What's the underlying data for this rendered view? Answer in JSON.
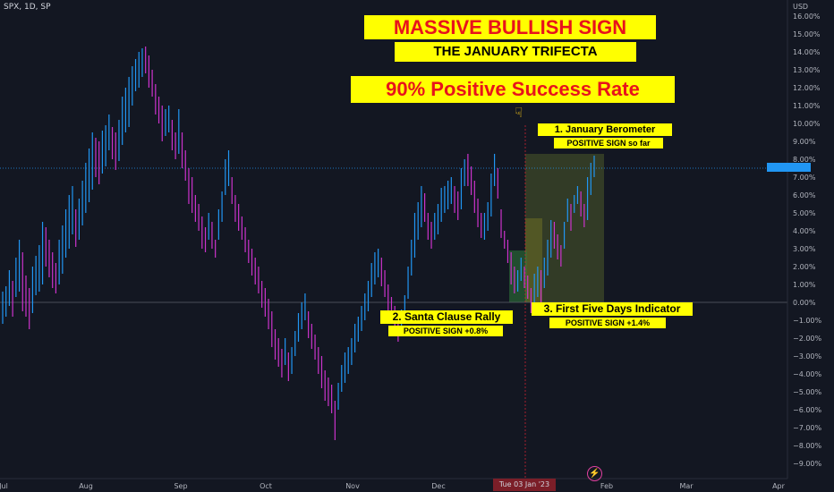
{
  "header": {
    "symbol_line": "SPX, 1D, SP"
  },
  "banners": {
    "main": "MASSIVE BULLISH SIGN",
    "sub": "THE JANUARY TRIFECTA",
    "rate": "90% Positive Success Rate"
  },
  "annotations": {
    "january_barometer": "1. January Berometer",
    "january_barometer_status": "POSITIVE SIGN so far",
    "santa_rally": "2. Santa  Clause Rally",
    "santa_rally_status": "POSITIVE SIGN +0.8%",
    "first_five_days": "3. First Five Days Indicator",
    "first_five_days_status": "POSITIVE SIGN +1.4%"
  },
  "crosshair_date": "Tue 03 Jan '23",
  "colors": {
    "up": "#2196f3",
    "down": "#cc33cc",
    "banner_bg": "#ffff00",
    "banner_text": "#e8131b",
    "background": "#131722"
  },
  "icons": {
    "pointer": "pointing-down-hand-icon",
    "events": "lightning-bolt-icon"
  },
  "chart_data": {
    "type": "bar",
    "title": "",
    "xlabel": "",
    "ylabel": "",
    "y_unit": "USD",
    "ylim": [
      -9.5,
      16.5
    ],
    "y_ticks": [
      "16.00%",
      "15.00%",
      "14.00%",
      "13.00%",
      "12.00%",
      "11.00%",
      "10.00%",
      "9.00%",
      "8.00%",
      "7.00%",
      "6.00%",
      "5.00%",
      "4.00%",
      "3.00%",
      "2.00%",
      "1.00%",
      "0.00%",
      "−1.00%",
      "−2.00%",
      "−3.00%",
      "−4.00%",
      "−5.00%",
      "−6.00%",
      "−7.00%",
      "−8.00%",
      "−9.00%"
    ],
    "x_ticks": [
      "Jul",
      "Aug",
      "Sep",
      "Oct",
      "Nov",
      "Dec",
      "Feb",
      "Mar",
      "Apr"
    ],
    "current_value": 7.5,
    "grid": false,
    "series_hl": [
      [
        -1.2,
        0.6
      ],
      [
        -0.8,
        0.9
      ],
      [
        -0.2,
        1.8
      ],
      [
        -0.8,
        1.2
      ],
      [
        0.3,
        2.5
      ],
      [
        0.6,
        3.5
      ],
      [
        -0.5,
        2.8
      ],
      [
        -0.8,
        1.5
      ],
      [
        -1.5,
        0.8
      ],
      [
        -0.6,
        2.0
      ],
      [
        0.4,
        2.6
      ],
      [
        0.6,
        3.2
      ],
      [
        1.0,
        4.5
      ],
      [
        2.0,
        4.2
      ],
      [
        1.4,
        3.5
      ],
      [
        0.8,
        2.8
      ],
      [
        0.5,
        2.2
      ],
      [
        1.0,
        3.5
      ],
      [
        1.6,
        4.3
      ],
      [
        2.5,
        5.2
      ],
      [
        3.0,
        6.0
      ],
      [
        3.8,
        6.5
      ],
      [
        3.1,
        5.2
      ],
      [
        3.5,
        5.8
      ],
      [
        4.3,
        6.8
      ],
      [
        5.0,
        7.8
      ],
      [
        5.6,
        8.6
      ],
      [
        6.3,
        9.5
      ],
      [
        7.0,
        9.2
      ],
      [
        6.6,
        9.0
      ],
      [
        7.2,
        9.6
      ],
      [
        7.6,
        9.9
      ],
      [
        8.5,
        10.5
      ],
      [
        8.0,
        9.8
      ],
      [
        7.4,
        9.5
      ],
      [
        7.9,
        10.2
      ],
      [
        8.8,
        11.5
      ],
      [
        9.5,
        12.0
      ],
      [
        9.8,
        12.6
      ],
      [
        11.0,
        13.2
      ],
      [
        11.8,
        13.6
      ],
      [
        12.0,
        14.0
      ],
      [
        12.6,
        14.2
      ],
      [
        12.8,
        14.3
      ],
      [
        12.0,
        13.8
      ],
      [
        11.5,
        13.0
      ],
      [
        10.5,
        12.2
      ],
      [
        10.0,
        11.5
      ],
      [
        9.0,
        11.0
      ],
      [
        9.3,
        10.8
      ],
      [
        9.5,
        11.0
      ],
      [
        8.5,
        10.2
      ],
      [
        8.0,
        9.5
      ],
      [
        8.3,
        10.8
      ],
      [
        7.5,
        9.5
      ],
      [
        6.8,
        8.5
      ],
      [
        5.5,
        7.5
      ],
      [
        5.0,
        7.0
      ],
      [
        4.5,
        6.0
      ],
      [
        4.0,
        5.5
      ],
      [
        3.0,
        4.8
      ],
      [
        2.8,
        4.2
      ],
      [
        3.5,
        5.0
      ],
      [
        3.0,
        4.5
      ],
      [
        2.5,
        3.5
      ],
      [
        3.5,
        5.2
      ],
      [
        4.5,
        6.2
      ],
      [
        6.0,
        8.0
      ],
      [
        6.5,
        8.5
      ],
      [
        5.5,
        7.0
      ],
      [
        4.5,
        6.0
      ],
      [
        4.0,
        5.5
      ],
      [
        3.5,
        4.8
      ],
      [
        2.8,
        4.2
      ],
      [
        2.2,
        3.5
      ],
      [
        1.5,
        3.0
      ],
      [
        1.0,
        2.5
      ],
      [
        0.5,
        2.0
      ],
      [
        -0.3,
        1.2
      ],
      [
        -0.8,
        0.8
      ],
      [
        -1.5,
        0.2
      ],
      [
        -2.5,
        -0.5
      ],
      [
        -3.2,
        -1.5
      ],
      [
        -3.6,
        -2.0
      ],
      [
        -4.2,
        -2.6
      ],
      [
        -3.5,
        -2.0
      ],
      [
        -4.4,
        -2.8
      ],
      [
        -4.0,
        -2.5
      ],
      [
        -3.0,
        -1.6
      ],
      [
        -2.2,
        -0.6
      ],
      [
        -1.5,
        0.0
      ],
      [
        -1.0,
        0.5
      ],
      [
        -2.0,
        -0.5
      ],
      [
        -2.6,
        -1.2
      ],
      [
        -3.2,
        -1.8
      ],
      [
        -4.0,
        -2.5
      ],
      [
        -4.8,
        -3.0
      ],
      [
        -5.5,
        -3.8
      ],
      [
        -5.8,
        -4.2
      ],
      [
        -6.2,
        -4.6
      ],
      [
        -7.7,
        -5.5
      ],
      [
        -6.0,
        -4.5
      ],
      [
        -5.0,
        -3.5
      ],
      [
        -4.5,
        -2.8
      ],
      [
        -4.0,
        -2.5
      ],
      [
        -3.5,
        -2.0
      ],
      [
        -2.8,
        -1.2
      ],
      [
        -2.2,
        -0.8
      ],
      [
        -1.6,
        -0.2
      ],
      [
        -1.0,
        0.5
      ],
      [
        -0.5,
        1.2
      ],
      [
        0.3,
        2.2
      ],
      [
        1.0,
        2.8
      ],
      [
        1.4,
        3.0
      ],
      [
        0.9,
        2.5
      ],
      [
        0.3,
        1.8
      ],
      [
        -0.5,
        1.0
      ],
      [
        -1.2,
        0.3
      ],
      [
        -1.8,
        -0.2
      ],
      [
        -2.2,
        -0.6
      ],
      [
        -1.6,
        -0.4
      ],
      [
        -1.0,
        0.4
      ],
      [
        0.2,
        2.0
      ],
      [
        1.5,
        3.5
      ],
      [
        2.5,
        5.0
      ],
      [
        3.5,
        5.6
      ],
      [
        4.2,
        6.5
      ],
      [
        4.5,
        6.1
      ],
      [
        3.5,
        5.0
      ],
      [
        3.0,
        4.5
      ],
      [
        3.5,
        5.0
      ],
      [
        3.8,
        5.5
      ],
      [
        4.5,
        6.4
      ],
      [
        5.0,
        6.5
      ],
      [
        5.2,
        6.8
      ],
      [
        5.5,
        7.0
      ],
      [
        5.0,
        6.5
      ],
      [
        4.6,
        6.2
      ],
      [
        5.2,
        7.5
      ],
      [
        6.5,
        8.0
      ],
      [
        6.5,
        8.3
      ],
      [
        6.0,
        7.6
      ],
      [
        5.0,
        6.8
      ],
      [
        4.2,
        5.8
      ],
      [
        3.6,
        5.0
      ],
      [
        3.5,
        5.0
      ],
      [
        4.0,
        5.6
      ],
      [
        4.8,
        7.2
      ],
      [
        6.5,
        8.3
      ],
      [
        5.8,
        7.5
      ],
      [
        3.6,
        5.2
      ],
      [
        3.0,
        4.0
      ],
      [
        2.2,
        3.5
      ],
      [
        1.0,
        2.8
      ],
      [
        0.5,
        2.0
      ],
      [
        0.6,
        1.8
      ],
      [
        1.2,
        2.5
      ],
      [
        0.8,
        2.0
      ],
      [
        0.2,
        1.5
      ],
      [
        -0.6,
        0.8
      ],
      [
        -0.5,
        1.6
      ],
      [
        0.3,
        2.0
      ],
      [
        0.0,
        1.8
      ],
      [
        0.8,
        2.5
      ],
      [
        1.5,
        3.5
      ],
      [
        2.5,
        4.6
      ],
      [
        3.0,
        4.5
      ],
      [
        2.4,
        3.8
      ],
      [
        2.0,
        3.2
      ],
      [
        3.0,
        4.5
      ],
      [
        4.5,
        5.8
      ],
      [
        4.0,
        5.5
      ],
      [
        5.0,
        6.0
      ],
      [
        5.5,
        6.5
      ],
      [
        4.8,
        6.2
      ],
      [
        4.2,
        5.5
      ],
      [
        4.6,
        7.0
      ],
      [
        6.0,
        7.8
      ],
      [
        7.0,
        8.2
      ]
    ],
    "series_dir": [
      "u",
      "u",
      "u",
      "d",
      "u",
      "u",
      "d",
      "d",
      "d",
      "u",
      "u",
      "u",
      "u",
      "d",
      "d",
      "d",
      "d",
      "u",
      "u",
      "u",
      "u",
      "u",
      "d",
      "u",
      "u",
      "u",
      "u",
      "u",
      "d",
      "d",
      "u",
      "u",
      "u",
      "d",
      "d",
      "u",
      "u",
      "u",
      "u",
      "u",
      "u",
      "u",
      "u",
      "d",
      "d",
      "d",
      "d",
      "d",
      "d",
      "u",
      "u",
      "d",
      "d",
      "u",
      "d",
      "d",
      "d",
      "d",
      "d",
      "d",
      "d",
      "d",
      "u",
      "d",
      "d",
      "u",
      "u",
      "u",
      "u",
      "d",
      "d",
      "d",
      "d",
      "d",
      "d",
      "d",
      "d",
      "d",
      "d",
      "d",
      "d",
      "d",
      "d",
      "d",
      "d",
      "u",
      "d",
      "u",
      "u",
      "u",
      "u",
      "u",
      "d",
      "d",
      "d",
      "d",
      "d",
      "d",
      "d",
      "d",
      "d",
      "u",
      "u",
      "u",
      "u",
      "u",
      "u",
      "u",
      "u",
      "u",
      "u",
      "u",
      "u",
      "u",
      "d",
      "d",
      "d",
      "d",
      "d",
      "d",
      "u",
      "u",
      "u",
      "u",
      "u",
      "u",
      "u",
      "d",
      "d",
      "d",
      "u",
      "u",
      "u",
      "u",
      "u",
      "u",
      "d",
      "d",
      "u",
      "u",
      "d",
      "d",
      "d",
      "d",
      "d",
      "u",
      "u",
      "u",
      "u",
      "d",
      "d",
      "d",
      "d",
      "d",
      "d",
      "u",
      "u",
      "d",
      "d",
      "d",
      "u",
      "u",
      "d",
      "u",
      "u",
      "u",
      "d",
      "d",
      "d",
      "u",
      "u",
      "d",
      "u",
      "u",
      "d",
      "d",
      "u",
      "u",
      "u"
    ]
  }
}
